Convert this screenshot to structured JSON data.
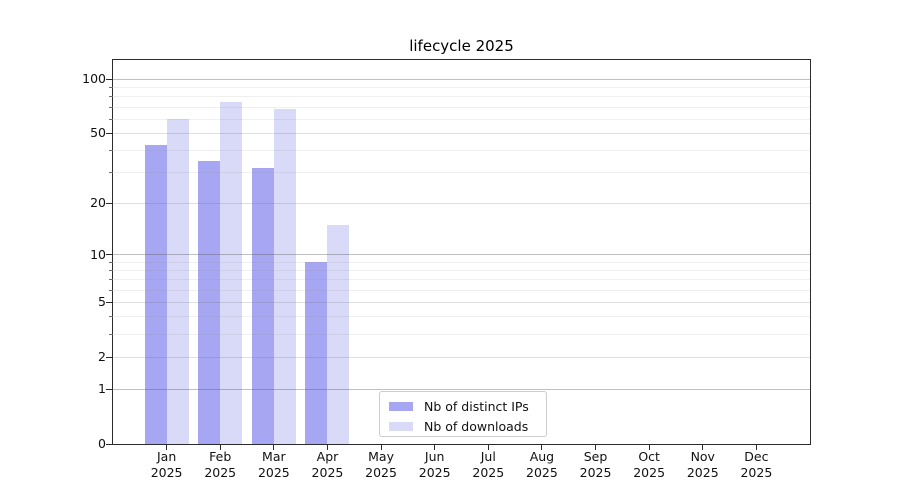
{
  "chart_data": {
    "type": "bar",
    "title": "lifecycle 2025",
    "categories": [
      "Jan",
      "Feb",
      "Mar",
      "Apr",
      "May",
      "Jun",
      "Jul",
      "Aug",
      "Sep",
      "Oct",
      "Nov",
      "Dec"
    ],
    "category_year": "2025",
    "series": [
      {
        "name": "Nb of distinct IPs",
        "color": "#a6a6f2",
        "values": [
          43,
          35,
          32,
          9,
          null,
          null,
          null,
          null,
          null,
          null,
          null,
          null
        ]
      },
      {
        "name": "Nb of downloads",
        "color": "#d9d9f8",
        "values": [
          60,
          75,
          68,
          15,
          null,
          null,
          null,
          null,
          null,
          null,
          null,
          null
        ]
      }
    ],
    "yscale": "log1p",
    "ylim": [
      0,
      128
    ],
    "yticks_major": [
      0,
      1,
      2,
      5,
      10,
      20,
      50,
      100
    ],
    "yticks_decade": [
      1,
      10,
      100
    ],
    "yticks_minor": [
      3,
      4,
      6,
      7,
      8,
      9,
      30,
      40,
      60,
      70,
      80,
      90
    ],
    "grid": "horizontal",
    "legend_position": "lower-center-inside",
    "colors": {
      "background": "#ffffff",
      "axis": "#2b2b2b",
      "text": "#111111",
      "grid_decade": "#c4c4c4",
      "grid_labeled": "#d9d9d9",
      "grid_minor": "#eaeaea",
      "legend_border": "#cccccc"
    }
  }
}
